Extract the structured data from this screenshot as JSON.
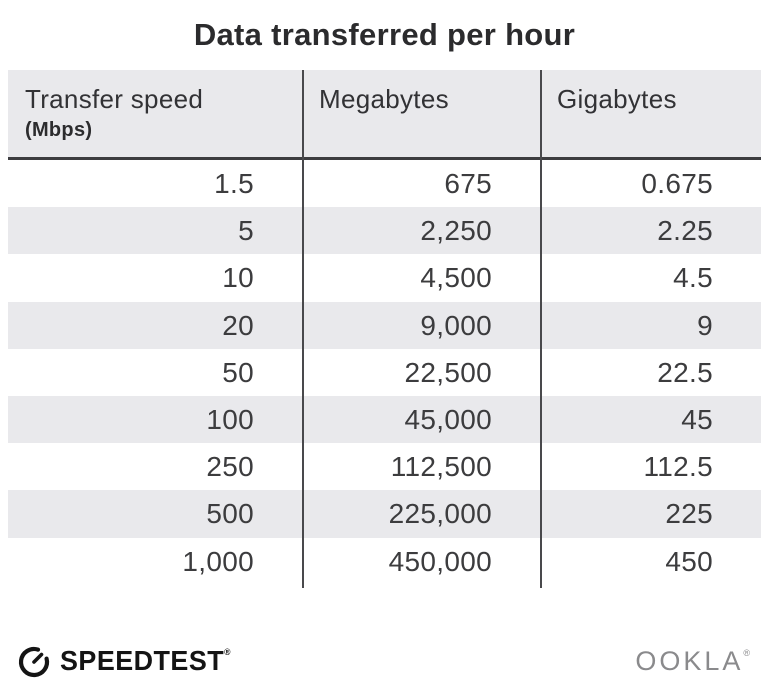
{
  "title": "Data transferred per hour",
  "table": {
    "columns": [
      {
        "label": "Transfer speed",
        "sublabel": "(Mbps)"
      },
      {
        "label": "Megabytes"
      },
      {
        "label": "Gigabytes"
      }
    ],
    "rows": [
      [
        "1.5",
        "675",
        "0.675"
      ],
      [
        "5",
        "2,250",
        "2.25"
      ],
      [
        "10",
        "4,500",
        "4.5"
      ],
      [
        "20",
        "9,000",
        "9"
      ],
      [
        "50",
        "22,500",
        "22.5"
      ],
      [
        "100",
        "45,000",
        "45"
      ],
      [
        "250",
        "112,500",
        "112.5"
      ],
      [
        "500",
        "225,000",
        "225"
      ],
      [
        "1,000",
        "450,000",
        "450"
      ]
    ]
  },
  "footer": {
    "brand": "SPEEDTEST",
    "brand_trademark": "®",
    "attribution": "OOKLA",
    "attribution_trademark": "®",
    "gauge_icon": "speedometer-gauge"
  },
  "colors": {
    "header_and_stripe_bg": "#e9e9ec",
    "rule_dark": "#3d3d40",
    "divider": "#49494c",
    "title_text": "#2b2b2d",
    "cell_text": "#3c3c3e",
    "brand_black": "#141414",
    "ookla_gray": "#8a8a8c",
    "page_bg": "#ffffff"
  },
  "chart_data": {
    "type": "table",
    "title": "Data transferred per hour",
    "columns": [
      "Transfer speed (Mbps)",
      "Megabytes",
      "Gigabytes"
    ],
    "rows": [
      [
        1.5,
        675,
        0.675
      ],
      [
        5,
        2250,
        2.25
      ],
      [
        10,
        4500,
        4.5
      ],
      [
        20,
        9000,
        9
      ],
      [
        50,
        22500,
        22.5
      ],
      [
        100,
        45000,
        45
      ],
      [
        250,
        112500,
        112.5
      ],
      [
        500,
        225000,
        225
      ],
      [
        1000,
        450000,
        450
      ]
    ],
    "layout": {
      "striped_row_indices": [
        1,
        3,
        5,
        7
      ],
      "header_background": "#e9e9ec",
      "value_alignment": "right"
    }
  }
}
